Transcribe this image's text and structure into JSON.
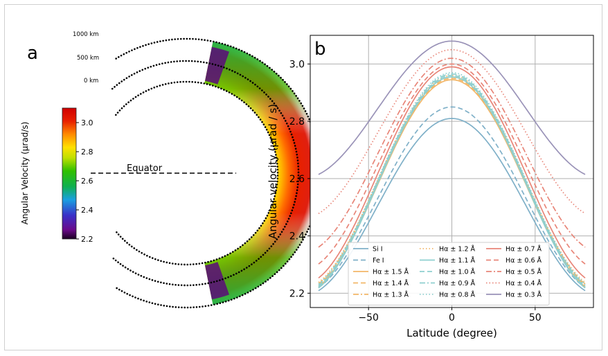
{
  "panel_a": {
    "label": "a",
    "heights": [
      "1000 km",
      "500 km",
      "0 km"
    ],
    "equator_label": "Equator",
    "colorbar": {
      "label": "Angular Velocity (µrad/s)",
      "ticks": [
        "2.2",
        "2.4",
        "2.6",
        "2.8",
        "3.0"
      ],
      "tick_values": [
        2.2,
        2.4,
        2.6,
        2.8,
        3.0
      ],
      "range": [
        2.2,
        3.1
      ]
    }
  },
  "chart_data": {
    "type": "line",
    "panel_label": "b",
    "title": "",
    "xlabel": "Latitude (degree)",
    "ylabel": "Angular velocity (µrad / s)",
    "xlim": [
      -85,
      85
    ],
    "ylim": [
      2.15,
      3.1
    ],
    "grid": true,
    "xticks": [
      -50,
      0,
      50
    ],
    "xtick_labels": [
      "−50",
      "0",
      "50"
    ],
    "yticks": [
      2.2,
      2.4,
      2.6,
      2.8,
      3.0
    ],
    "ytick_labels": [
      "2.2",
      "2.4",
      "2.6",
      "2.8",
      "3.0"
    ],
    "legend_position": "lower-center",
    "lat_range": [
      -80,
      80
    ],
    "series": [
      {
        "name": "Si I",
        "color": "#7fb0c8",
        "dash": "solid",
        "equator": 2.81,
        "pole": 2.19
      },
      {
        "name": "Fe I",
        "color": "#7fb0c8",
        "dash": "dashed",
        "equator": 2.85,
        "pole": 2.2
      },
      {
        "name": "Hα ± 1.5 Å",
        "color": "#f2b668",
        "dash": "solid",
        "equator": 2.945,
        "pole": 2.2
      },
      {
        "name": "Hα ± 1.4 Å",
        "color": "#f2b668",
        "dash": "dashed",
        "equator": 2.95,
        "pole": 2.205
      },
      {
        "name": "Hα ± 1.3 Å",
        "color": "#f2b668",
        "dash": "dashdot",
        "equator": 2.955,
        "pole": 2.21
      },
      {
        "name": "Hα ± 1.2 Å",
        "color": "#f2b668",
        "dash": "dotted",
        "equator": 2.96,
        "pole": 2.215
      },
      {
        "name": "Hα ± 1.1 Å",
        "color": "#8ecfcf",
        "dash": "solid",
        "equator": 2.955,
        "pole": 2.195
      },
      {
        "name": "Hα ± 1.0 Å",
        "color": "#8ecfcf",
        "dash": "dashed",
        "equator": 2.96,
        "pole": 2.2
      },
      {
        "name": "Hα ± 0.9 Å",
        "color": "#8ecfcf",
        "dash": "dashdot",
        "equator": 2.965,
        "pole": 2.205
      },
      {
        "name": "Hα ± 0.8 Å",
        "color": "#8ecfcf",
        "dash": "dotted",
        "equator": 2.97,
        "pole": 2.21
      },
      {
        "name": "Hα ± 0.7 Å",
        "color": "#e88578",
        "dash": "solid",
        "equator": 2.99,
        "pole": 2.23
      },
      {
        "name": "Hα ± 0.6 Å",
        "color": "#e88578",
        "dash": "dashed",
        "equator": 3.0,
        "pole": 2.28
      },
      {
        "name": "Hα ± 0.5 Å",
        "color": "#e88578",
        "dash": "dashdot",
        "equator": 3.02,
        "pole": 2.34
      },
      {
        "name": "Hα ± 0.4 Å",
        "color": "#e88578",
        "dash": "dotted",
        "equator": 3.05,
        "pole": 2.46
      },
      {
        "name": "Hα ± 0.3 Å",
        "color": "#9a93b8",
        "dash": "solid",
        "equator": 3.08,
        "pole": 2.6
      }
    ]
  }
}
